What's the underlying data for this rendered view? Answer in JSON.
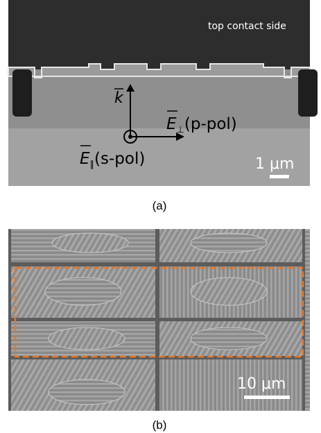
{
  "panels": [
    {
      "label": "(a)",
      "side_label": "top contact side",
      "k": "k",
      "e_perp": {
        "symbol": "E",
        "sub": "⊥",
        "pol": "(p-pol)"
      },
      "e_par": {
        "symbol": "E",
        "sub": "∥",
        "pol": "(s-pol)"
      },
      "scale_bar": "1 μm"
    },
    {
      "label": "(b)",
      "scale_bar": "10 μm"
    }
  ]
}
